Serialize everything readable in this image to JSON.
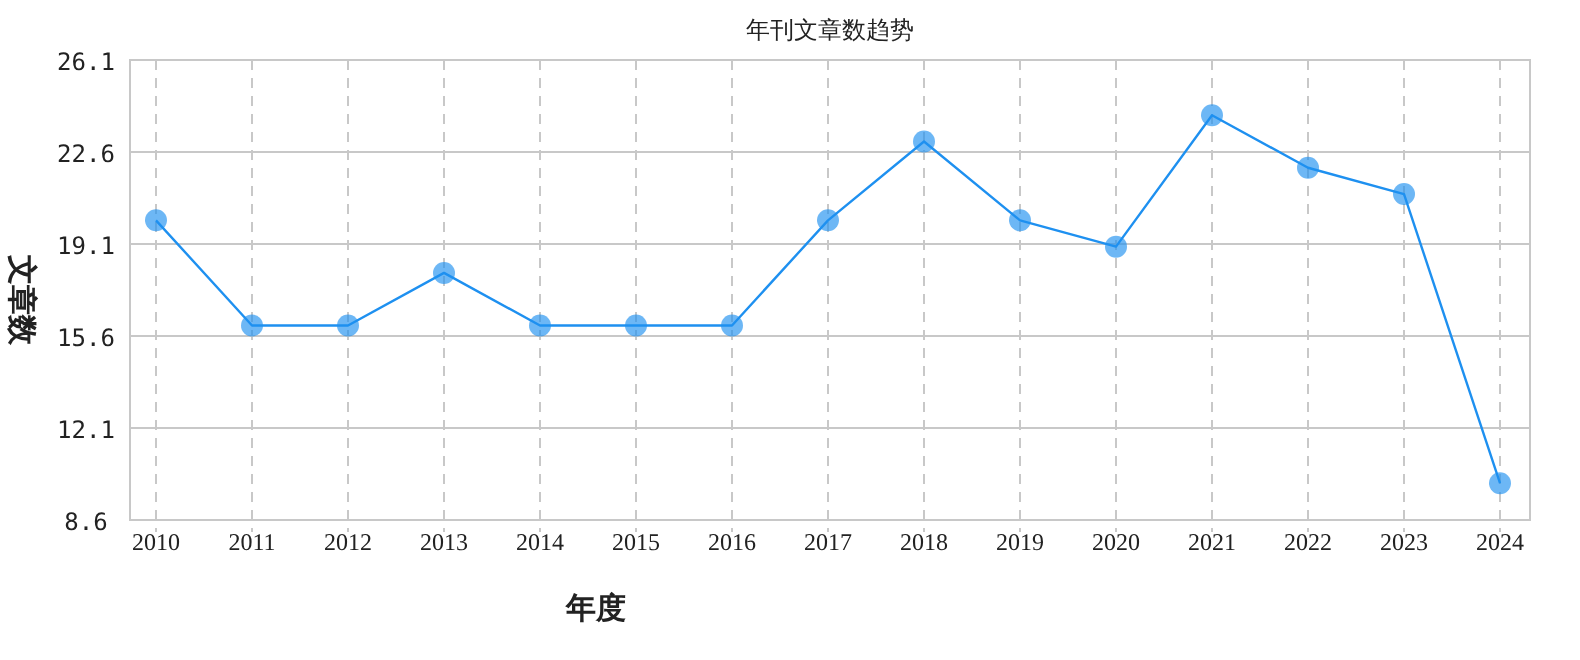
{
  "chart_data": {
    "type": "line",
    "title": "年刊文章数趋势",
    "xlabel": "年度",
    "ylabel": "文章数",
    "categories": [
      "2010",
      "2011",
      "2012",
      "2013",
      "2014",
      "2015",
      "2016",
      "2017",
      "2018",
      "2019",
      "2020",
      "2021",
      "2022",
      "2023",
      "2024"
    ],
    "values": [
      20,
      16,
      16,
      18,
      16,
      16,
      16,
      20,
      23,
      20,
      19,
      24,
      22,
      21,
      10
    ],
    "color": "#1e90f0",
    "marker": "circle",
    "grid": true,
    "ylim": [
      8.6,
      26.1
    ],
    "yticks": [
      8.6,
      12.1,
      15.6,
      19.1,
      22.6,
      26.1
    ]
  }
}
